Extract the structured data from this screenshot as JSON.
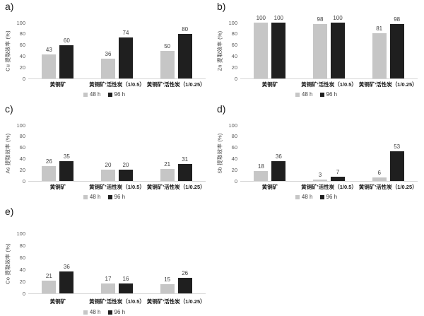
{
  "figure": {
    "background": "#ffffff",
    "series_colors": {
      "48 h": "#c6c6c6",
      "96 h": "#1f1f1f"
    }
  },
  "chart_data": [
    {
      "type": "bar",
      "panel": "a)",
      "ylabel": "Cu 提取效率 (%)",
      "ylim": [
        0,
        100
      ],
      "yticks": [
        0,
        20,
        40,
        60,
        80,
        100
      ],
      "grid": false,
      "legend_position": "bottom",
      "categories": [
        "黄铜矿",
        "黄铜矿’活性炭（1/0.5）",
        "黄铜矿’活性炭（1/0.25）"
      ],
      "series": [
        {
          "name": "48 h",
          "color": "#c6c6c6",
          "values": [
            43,
            36,
            50
          ]
        },
        {
          "name": "96 h",
          "color": "#1f1f1f",
          "values": [
            60,
            74,
            80
          ]
        }
      ]
    },
    {
      "type": "bar",
      "panel": "b)",
      "ylabel": "Zn 提取效率 (%)",
      "ylim": [
        0,
        100
      ],
      "yticks": [
        0,
        20,
        40,
        60,
        80,
        100
      ],
      "grid": false,
      "legend_position": "bottom",
      "categories": [
        "黄铜矿",
        "黄铜矿’活性炭（1/0.5）",
        "黄铜矿’活性炭（1/0.25）"
      ],
      "series": [
        {
          "name": "48 h",
          "color": "#c6c6c6",
          "values": [
            100,
            98,
            81
          ]
        },
        {
          "name": "96 h",
          "color": "#1f1f1f",
          "values": [
            100,
            100,
            98
          ]
        }
      ]
    },
    {
      "type": "bar",
      "panel": "c)",
      "ylabel": "As 提取效率 (%)",
      "ylim": [
        0,
        100
      ],
      "yticks": [
        0,
        20,
        40,
        60,
        80,
        100
      ],
      "grid": false,
      "legend_position": "bottom",
      "categories": [
        "黄铜矿",
        "黄铜矿’活性炭（1/0.5）",
        "黄铜矿’活性炭（1/0.25）"
      ],
      "series": [
        {
          "name": "48 h",
          "color": "#c6c6c6",
          "values": [
            26,
            20,
            21
          ]
        },
        {
          "name": "96 h",
          "color": "#1f1f1f",
          "values": [
            35,
            20,
            31
          ]
        }
      ]
    },
    {
      "type": "bar",
      "panel": "d)",
      "ylabel": "Sb 提取效率 (%)",
      "ylim": [
        0,
        100
      ],
      "yticks": [
        0,
        20,
        40,
        60,
        80,
        100
      ],
      "grid": false,
      "legend_position": "bottom",
      "categories": [
        "黄铜矿",
        "黄铜矿’活性炭（1/0.5）",
        "黄铜矿’活性炭（1/0.25）"
      ],
      "series": [
        {
          "name": "48 h",
          "color": "#c6c6c6",
          "values": [
            18,
            3,
            6
          ]
        },
        {
          "name": "96 h",
          "color": "#1f1f1f",
          "values": [
            36,
            7,
            53
          ]
        }
      ]
    },
    {
      "type": "bar",
      "panel": "e)",
      "ylabel": "Co 提取效率 (%)",
      "ylim": [
        0,
        100
      ],
      "yticks": [
        0,
        20,
        40,
        60,
        80,
        100
      ],
      "grid": false,
      "legend_position": "bottom",
      "categories": [
        "黄铜矿",
        "黄铜矿’活性炭（1/0.5）",
        "黄铜矿’活性炭（1/0.25）"
      ],
      "series": [
        {
          "name": "48 h",
          "color": "#c6c6c6",
          "values": [
            21,
            17,
            15
          ]
        },
        {
          "name": "96 h",
          "color": "#1f1f1f",
          "values": [
            36,
            16,
            26
          ]
        }
      ]
    }
  ]
}
